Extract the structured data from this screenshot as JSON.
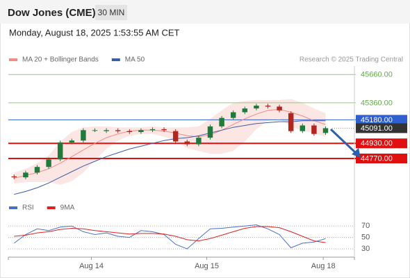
{
  "header": {
    "title": "Dow Jones (CME)",
    "interval": "30 MIN",
    "timestamp": "Monday, August 18, 2025 1:53:55 AM CET"
  },
  "chart_data": [
    {
      "type": "candlestick",
      "credit": "Research © 2025 Trading Central",
      "xlim": [
        -0.5,
        29.5
      ],
      "xticks": [
        {
          "value": 6.7,
          "label": "Aug 14"
        },
        {
          "value": 16.7,
          "label": "Aug 15"
        },
        {
          "value": 26.8,
          "label": "Aug 18"
        }
      ],
      "ylim": [
        44350,
        45750
      ],
      "candles": {
        "up_color": "#1f7a3c",
        "down_color": "#b3261e",
        "open": [
          44580,
          44570,
          44620,
          44680,
          44760,
          44940,
          44960,
          45070,
          45060,
          45070,
          45060,
          45050,
          45070,
          45080,
          45060,
          44950,
          44920,
          44990,
          45110,
          45200,
          45260,
          45300,
          45330,
          45320,
          45250,
          45060,
          45120,
          45040
        ],
        "high": [
          44600,
          44640,
          44700,
          44780,
          44960,
          44980,
          45090,
          45090,
          45090,
          45090,
          45080,
          45090,
          45100,
          45100,
          45080,
          44970,
          45010,
          45130,
          45220,
          45280,
          45320,
          45350,
          45350,
          45340,
          45270,
          45140,
          45140,
          45110
        ],
        "low": [
          44550,
          44550,
          44600,
          44660,
          44740,
          44920,
          44940,
          45050,
          45040,
          45040,
          45030,
          45030,
          45050,
          45050,
          44930,
          44900,
          44900,
          44970,
          45090,
          45180,
          45240,
          45280,
          45300,
          45260,
          45040,
          45040,
          45010,
          45020
        ],
        "close": [
          44570,
          44620,
          44680,
          44760,
          44940,
          44960,
          45070,
          45070,
          45070,
          45060,
          45050,
          45070,
          45080,
          45070,
          44950,
          44920,
          44990,
          45110,
          45200,
          45260,
          45300,
          45330,
          45320,
          45280,
          45060,
          45120,
          45030,
          45091
        ]
      },
      "series": [
        {
          "name": "MA 20 + Bollinger Bands",
          "color": "#f28b82",
          "values": [
            44560,
            44590,
            44620,
            44660,
            44720,
            44790,
            44860,
            44930,
            44990,
            45030,
            45060,
            45070,
            45070,
            45060,
            45040,
            45010,
            45000,
            45020,
            45070,
            45130,
            45190,
            45240,
            45280,
            45290,
            45260,
            45220,
            45170,
            45130
          ],
          "upper": [
            44620,
            44660,
            44720,
            44800,
            44950,
            45050,
            45100,
            45110,
            45110,
            45100,
            45100,
            45100,
            45110,
            45100,
            45100,
            45100,
            45110,
            45190,
            45280,
            45360,
            45380,
            45390,
            45390,
            45390,
            45400,
            45360,
            45300,
            45250
          ],
          "lower": [
            44500,
            44520,
            44520,
            44520,
            44490,
            44530,
            44620,
            44750,
            44870,
            44960,
            45010,
            45030,
            45030,
            45000,
            44960,
            44880,
            44850,
            44820,
            44820,
            44850,
            44950,
            45080,
            45170,
            45190,
            45110,
            45060,
            45040,
            45000
          ]
        },
        {
          "name": "MA 50",
          "color": "#3a5da8",
          "values": [
            44390,
            44420,
            44460,
            44510,
            44570,
            44630,
            44690,
            44740,
            44790,
            44830,
            44870,
            44900,
            44930,
            44960,
            44980,
            44990,
            45010,
            45040,
            45070,
            45100,
            45120,
            45140,
            45150,
            45160,
            45160,
            45170,
            45170,
            45170
          ]
        }
      ],
      "levels": [
        {
          "value": 45660,
          "label": "45660.00",
          "color": "#8fcc7a",
          "boxed": false,
          "line": "solid"
        },
        {
          "value": 45360,
          "label": "45360.00",
          "color": "#8fcc7a",
          "boxed": false,
          "line": "solid"
        },
        {
          "value": 45180,
          "label": "45180.00",
          "color": "#2f5fd0",
          "boxed": true,
          "line": "solid"
        },
        {
          "value": 45091,
          "label": "45091.00",
          "color": "#333333",
          "boxed": true,
          "line": "dotted"
        },
        {
          "value": 44930,
          "label": "44930.00",
          "color": "#e01010",
          "boxed": true,
          "line": "thick"
        },
        {
          "value": 44770,
          "label": "44770.00",
          "color": "#e01010",
          "boxed": true,
          "line": "thick"
        }
      ]
    },
    {
      "type": "line",
      "xlim": [
        -0.5,
        29.5
      ],
      "ylim": [
        18,
        86
      ],
      "yticks": [
        30,
        50,
        70
      ],
      "series": [
        {
          "name": "RSI",
          "color": "#4a6fc9",
          "values": [
            40,
            55,
            65,
            62,
            68,
            70,
            60,
            55,
            58,
            52,
            50,
            62,
            60,
            55,
            38,
            30,
            48,
            65,
            66,
            68,
            70,
            72,
            65,
            55,
            32,
            40,
            42,
            48
          ]
        },
        {
          "name": "9MA",
          "color": "#e02020",
          "values": [
            52,
            54,
            58,
            60,
            64,
            66,
            65,
            62,
            60,
            58,
            56,
            57,
            57,
            56,
            52,
            46,
            44,
            48,
            54,
            60,
            66,
            69,
            69,
            67,
            60,
            52,
            44,
            41
          ]
        }
      ]
    }
  ]
}
